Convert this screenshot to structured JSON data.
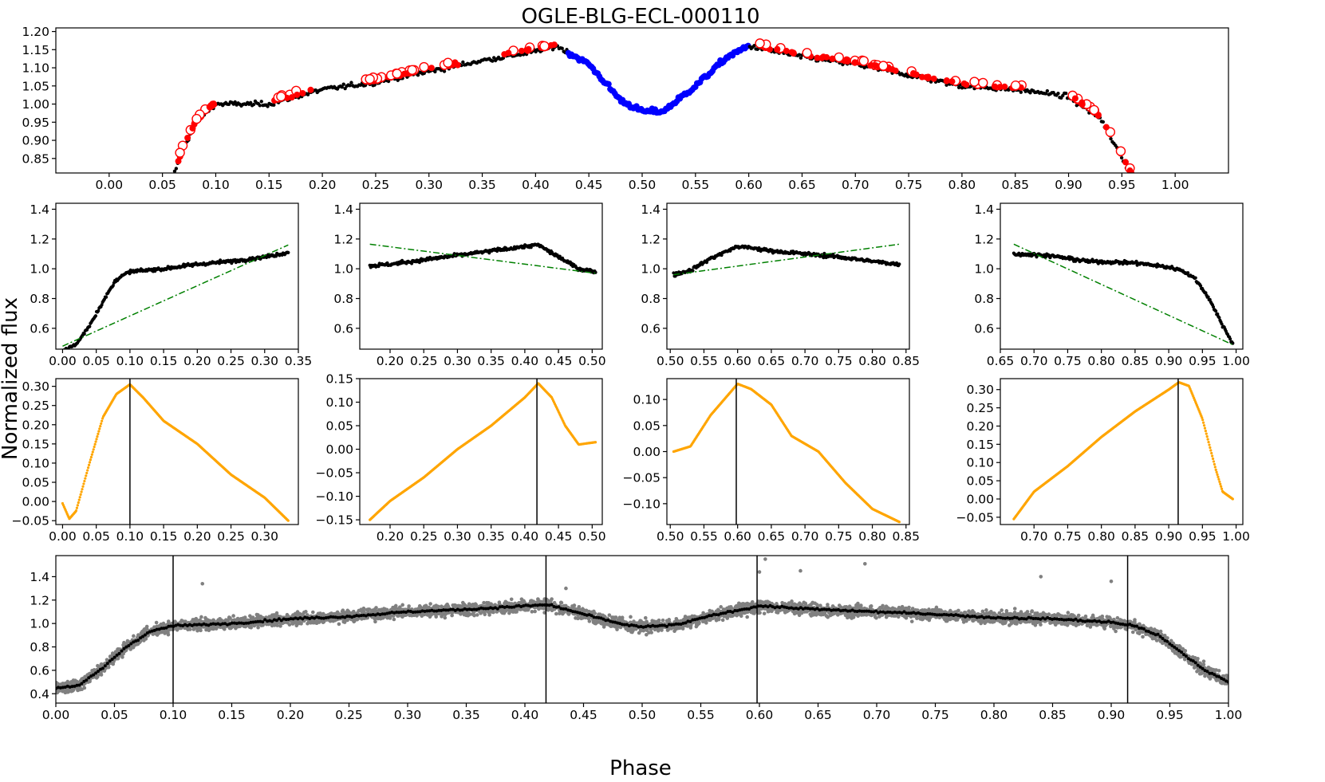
{
  "figure": {
    "title": "OGLE-BLG-ECL-000110",
    "ylabel": "Normalized flux",
    "xlabel": "Phase"
  },
  "colors": {
    "black_points": "#000000",
    "red_points": "#ff0000",
    "blue_points": "#0000ff",
    "fit_line": "#008000",
    "derivative": "#ffa500",
    "raw_points": "#808080"
  },
  "chart_data": [
    {
      "id": "top",
      "type": "scatter",
      "title": "OGLE-BLG-ECL-000110",
      "xlim": [
        -0.05,
        1.05
      ],
      "ylim": [
        0.81,
        1.21
      ],
      "xticks": [
        "0.00",
        "0.05",
        "0.10",
        "0.15",
        "0.20",
        "0.25",
        "0.30",
        "0.35",
        "0.40",
        "0.45",
        "0.50",
        "0.55",
        "0.60",
        "0.65",
        "0.70",
        "0.75",
        "0.80",
        "0.85",
        "0.90",
        "0.95",
        "1.00"
      ],
      "yticks": [
        "0.85",
        "0.90",
        "0.95",
        "1.00",
        "1.05",
        "1.10",
        "1.15",
        "1.20"
      ],
      "curve": [
        [
          0.06,
          0.8
        ],
        [
          0.07,
          0.88
        ],
        [
          0.08,
          0.94
        ],
        [
          0.09,
          0.975
        ],
        [
          0.1,
          1.0
        ],
        [
          0.15,
          1.0
        ],
        [
          0.2,
          1.04
        ],
        [
          0.25,
          1.06
        ],
        [
          0.3,
          1.09
        ],
        [
          0.35,
          1.12
        ],
        [
          0.4,
          1.145
        ],
        [
          0.42,
          1.16
        ],
        [
          0.45,
          1.11
        ],
        [
          0.48,
          1.01
        ],
        [
          0.5,
          0.98
        ],
        [
          0.52,
          0.98
        ],
        [
          0.55,
          1.05
        ],
        [
          0.58,
          1.13
        ],
        [
          0.6,
          1.16
        ],
        [
          0.65,
          1.13
        ],
        [
          0.7,
          1.11
        ],
        [
          0.75,
          1.08
        ],
        [
          0.8,
          1.05
        ],
        [
          0.85,
          1.04
        ],
        [
          0.88,
          1.03
        ],
        [
          0.9,
          1.02
        ],
        [
          0.93,
          0.96
        ],
        [
          0.95,
          0.85
        ],
        [
          0.96,
          0.8
        ]
      ],
      "series": [
        {
          "name": "",
          "role": "black points",
          "x_range": [
            0.06,
            0.96
          ]
        },
        {
          "name": "",
          "role": "red points",
          "x_ranges": [
            [
              0.06,
              0.1
            ],
            [
              0.155,
              0.19
            ],
            [
              0.24,
              0.33
            ],
            [
              0.37,
              0.42
            ],
            [
              0.61,
              0.86
            ],
            [
              0.9,
              0.96
            ]
          ]
        },
        {
          "name": "",
          "role": "blue points",
          "x_ranges": [
            [
              0.43,
              0.6
            ]
          ]
        }
      ]
    },
    {
      "id": "seg1",
      "type": "scatter",
      "xlim": [
        -0.01,
        0.35
      ],
      "ylim": [
        0.46,
        1.44
      ],
      "xticks": [
        "0.00",
        "0.05",
        "0.10",
        "0.15",
        "0.20",
        "0.25",
        "0.30",
        "0.35"
      ],
      "yticks": [
        "0.6",
        "0.8",
        "1.0",
        "1.2",
        "1.4"
      ],
      "curve": [
        [
          0.0,
          0.45
        ],
        [
          0.02,
          0.49
        ],
        [
          0.04,
          0.62
        ],
        [
          0.06,
          0.78
        ],
        [
          0.08,
          0.93
        ],
        [
          0.1,
          0.98
        ],
        [
          0.15,
          1.0
        ],
        [
          0.2,
          1.03
        ],
        [
          0.25,
          1.05
        ],
        [
          0.3,
          1.08
        ],
        [
          0.335,
          1.11
        ]
      ],
      "fit_line": [
        [
          0.0,
          0.48
        ],
        [
          0.335,
          1.16
        ]
      ]
    },
    {
      "id": "seg2",
      "type": "scatter",
      "xlim": [
        0.155,
        0.515
      ],
      "ylim": [
        0.46,
        1.44
      ],
      "xticks": [
        "0.20",
        "0.25",
        "0.30",
        "0.35",
        "0.40",
        "0.45",
        "0.50"
      ],
      "yticks": [
        "0.6",
        "0.8",
        "1.0",
        "1.2",
        "1.4"
      ],
      "curve": [
        [
          0.17,
          1.02
        ],
        [
          0.2,
          1.03
        ],
        [
          0.25,
          1.06
        ],
        [
          0.3,
          1.09
        ],
        [
          0.35,
          1.12
        ],
        [
          0.4,
          1.15
        ],
        [
          0.42,
          1.16
        ],
        [
          0.45,
          1.08
        ],
        [
          0.48,
          1.0
        ],
        [
          0.505,
          0.98
        ]
      ],
      "fit_line": [
        [
          0.17,
          1.165
        ],
        [
          0.505,
          0.97
        ]
      ]
    },
    {
      "id": "seg3",
      "type": "scatter",
      "xlim": [
        0.495,
        0.855
      ],
      "ylim": [
        0.46,
        1.44
      ],
      "xticks": [
        "0.50",
        "0.55",
        "0.60",
        "0.65",
        "0.70",
        "0.75",
        "0.80",
        "0.85"
      ],
      "yticks": [
        "0.6",
        "0.8",
        "1.0",
        "1.2",
        "1.4"
      ],
      "curve": [
        [
          0.505,
          0.96
        ],
        [
          0.53,
          0.99
        ],
        [
          0.56,
          1.07
        ],
        [
          0.6,
          1.15
        ],
        [
          0.62,
          1.14
        ],
        [
          0.65,
          1.12
        ],
        [
          0.7,
          1.1
        ],
        [
          0.75,
          1.08
        ],
        [
          0.8,
          1.05
        ],
        [
          0.84,
          1.03
        ]
      ],
      "fit_line": [
        [
          0.505,
          0.96
        ],
        [
          0.84,
          1.165
        ]
      ]
    },
    {
      "id": "seg4",
      "type": "scatter",
      "xlim": [
        0.65,
        1.01
      ],
      "ylim": [
        0.46,
        1.44
      ],
      "xticks": [
        "0.65",
        "0.70",
        "0.75",
        "0.80",
        "0.85",
        "0.90",
        "0.95",
        "1.00"
      ],
      "yticks": [
        "0.6",
        "0.8",
        "1.0",
        "1.2",
        "1.4"
      ],
      "curve": [
        [
          0.67,
          1.1
        ],
        [
          0.72,
          1.09
        ],
        [
          0.78,
          1.05
        ],
        [
          0.85,
          1.04
        ],
        [
          0.9,
          1.01
        ],
        [
          0.92,
          0.99
        ],
        [
          0.94,
          0.93
        ],
        [
          0.96,
          0.8
        ],
        [
          0.98,
          0.62
        ],
        [
          0.995,
          0.5
        ]
      ],
      "fit_line": [
        [
          0.67,
          1.165
        ],
        [
          0.995,
          0.49
        ]
      ]
    },
    {
      "id": "der1",
      "type": "scatter",
      "xlim": [
        -0.01,
        0.35
      ],
      "ylim": [
        -0.06,
        0.32
      ],
      "xticks": [
        "0.00",
        "0.05",
        "0.10",
        "0.15",
        "0.20",
        "0.25",
        "0.30"
      ],
      "yticks": [
        "−0.05",
        "0.00",
        "0.05",
        "0.10",
        "0.15",
        "0.20",
        "0.25",
        "0.30"
      ],
      "curve": [
        [
          0.0,
          -0.005
        ],
        [
          0.01,
          -0.045
        ],
        [
          0.02,
          -0.025
        ],
        [
          0.04,
          0.1
        ],
        [
          0.06,
          0.22
        ],
        [
          0.08,
          0.28
        ],
        [
          0.1,
          0.305
        ],
        [
          0.12,
          0.27
        ],
        [
          0.15,
          0.21
        ],
        [
          0.2,
          0.15
        ],
        [
          0.25,
          0.07
        ],
        [
          0.3,
          0.01
        ],
        [
          0.335,
          -0.05
        ]
      ],
      "vline": 0.1
    },
    {
      "id": "der2",
      "type": "scatter",
      "xlim": [
        0.155,
        0.515
      ],
      "ylim": [
        -0.16,
        0.15
      ],
      "xticks": [
        "0.20",
        "0.25",
        "0.30",
        "0.35",
        "0.40",
        "0.45",
        "0.50"
      ],
      "yticks": [
        "−0.15",
        "−0.10",
        "−0.05",
        "0.00",
        "0.05",
        "0.10",
        "0.15"
      ],
      "curve": [
        [
          0.17,
          -0.15
        ],
        [
          0.2,
          -0.11
        ],
        [
          0.25,
          -0.06
        ],
        [
          0.3,
          0.0
        ],
        [
          0.35,
          0.05
        ],
        [
          0.4,
          0.11
        ],
        [
          0.42,
          0.14
        ],
        [
          0.44,
          0.11
        ],
        [
          0.46,
          0.05
        ],
        [
          0.48,
          0.01
        ],
        [
          0.505,
          0.015
        ]
      ],
      "vline": 0.418
    },
    {
      "id": "der3",
      "type": "scatter",
      "xlim": [
        0.495,
        0.855
      ],
      "ylim": [
        -0.14,
        0.14
      ],
      "xticks": [
        "0.50",
        "0.55",
        "0.60",
        "0.65",
        "0.70",
        "0.75",
        "0.80",
        "0.85"
      ],
      "yticks": [
        "−0.10",
        "−0.05",
        "0.00",
        "0.05",
        "0.10"
      ],
      "curve": [
        [
          0.505,
          0.0
        ],
        [
          0.53,
          0.01
        ],
        [
          0.56,
          0.07
        ],
        [
          0.6,
          0.13
        ],
        [
          0.62,
          0.12
        ],
        [
          0.65,
          0.09
        ],
        [
          0.68,
          0.03
        ],
        [
          0.72,
          0.0
        ],
        [
          0.76,
          -0.06
        ],
        [
          0.8,
          -0.11
        ],
        [
          0.84,
          -0.135
        ]
      ],
      "vline": 0.598
    },
    {
      "id": "der4",
      "type": "scatter",
      "xlim": [
        0.65,
        1.01
      ],
      "ylim": [
        -0.07,
        0.33
      ],
      "xticks": [
        "0.70",
        "0.75",
        "0.80",
        "0.85",
        "0.90",
        "0.95",
        "1.00"
      ],
      "yticks": [
        "−0.05",
        "0.00",
        "0.05",
        "0.10",
        "0.15",
        "0.20",
        "0.25",
        "0.30"
      ],
      "curve": [
        [
          0.67,
          -0.055
        ],
        [
          0.7,
          0.02
        ],
        [
          0.75,
          0.09
        ],
        [
          0.8,
          0.17
        ],
        [
          0.85,
          0.24
        ],
        [
          0.9,
          0.3
        ],
        [
          0.915,
          0.32
        ],
        [
          0.93,
          0.31
        ],
        [
          0.95,
          0.22
        ],
        [
          0.97,
          0.08
        ],
        [
          0.98,
          0.02
        ],
        [
          0.995,
          0.0
        ]
      ],
      "vline": 0.914
    },
    {
      "id": "bottom",
      "type": "scatter",
      "xlim": [
        0.0,
        1.0
      ],
      "ylim": [
        0.32,
        1.58
      ],
      "xticks": [
        "0.00",
        "0.05",
        "0.10",
        "0.15",
        "0.20",
        "0.25",
        "0.30",
        "0.35",
        "0.40",
        "0.45",
        "0.50",
        "0.55",
        "0.60",
        "0.65",
        "0.70",
        "0.75",
        "0.80",
        "0.85",
        "0.90",
        "0.95",
        "1.00"
      ],
      "yticks": [
        "0.4",
        "0.6",
        "0.8",
        "1.0",
        "1.2",
        "1.4"
      ],
      "curve": [
        [
          0.0,
          0.45
        ],
        [
          0.02,
          0.47
        ],
        [
          0.04,
          0.62
        ],
        [
          0.06,
          0.8
        ],
        [
          0.08,
          0.93
        ],
        [
          0.1,
          0.98
        ],
        [
          0.15,
          1.0
        ],
        [
          0.2,
          1.04
        ],
        [
          0.25,
          1.06
        ],
        [
          0.3,
          1.1
        ],
        [
          0.35,
          1.12
        ],
        [
          0.4,
          1.15
        ],
        [
          0.42,
          1.16
        ],
        [
          0.45,
          1.08
        ],
        [
          0.48,
          1.0
        ],
        [
          0.5,
          0.97
        ],
        [
          0.53,
          0.99
        ],
        [
          0.56,
          1.07
        ],
        [
          0.6,
          1.15
        ],
        [
          0.65,
          1.12
        ],
        [
          0.7,
          1.1
        ],
        [
          0.75,
          1.08
        ],
        [
          0.8,
          1.05
        ],
        [
          0.85,
          1.04
        ],
        [
          0.9,
          1.01
        ],
        [
          0.92,
          0.98
        ],
        [
          0.94,
          0.9
        ],
        [
          0.96,
          0.75
        ],
        [
          0.98,
          0.6
        ],
        [
          1.0,
          0.5
        ]
      ],
      "vlines": [
        0.1,
        0.418,
        0.598,
        0.914
      ],
      "outliers": [
        [
          0.125,
          1.34
        ],
        [
          0.435,
          1.3
        ],
        [
          0.6,
          1.44
        ],
        [
          0.605,
          1.55
        ],
        [
          0.635,
          1.45
        ],
        [
          0.69,
          1.51
        ],
        [
          0.84,
          1.4
        ],
        [
          0.9,
          1.36
        ]
      ]
    }
  ]
}
